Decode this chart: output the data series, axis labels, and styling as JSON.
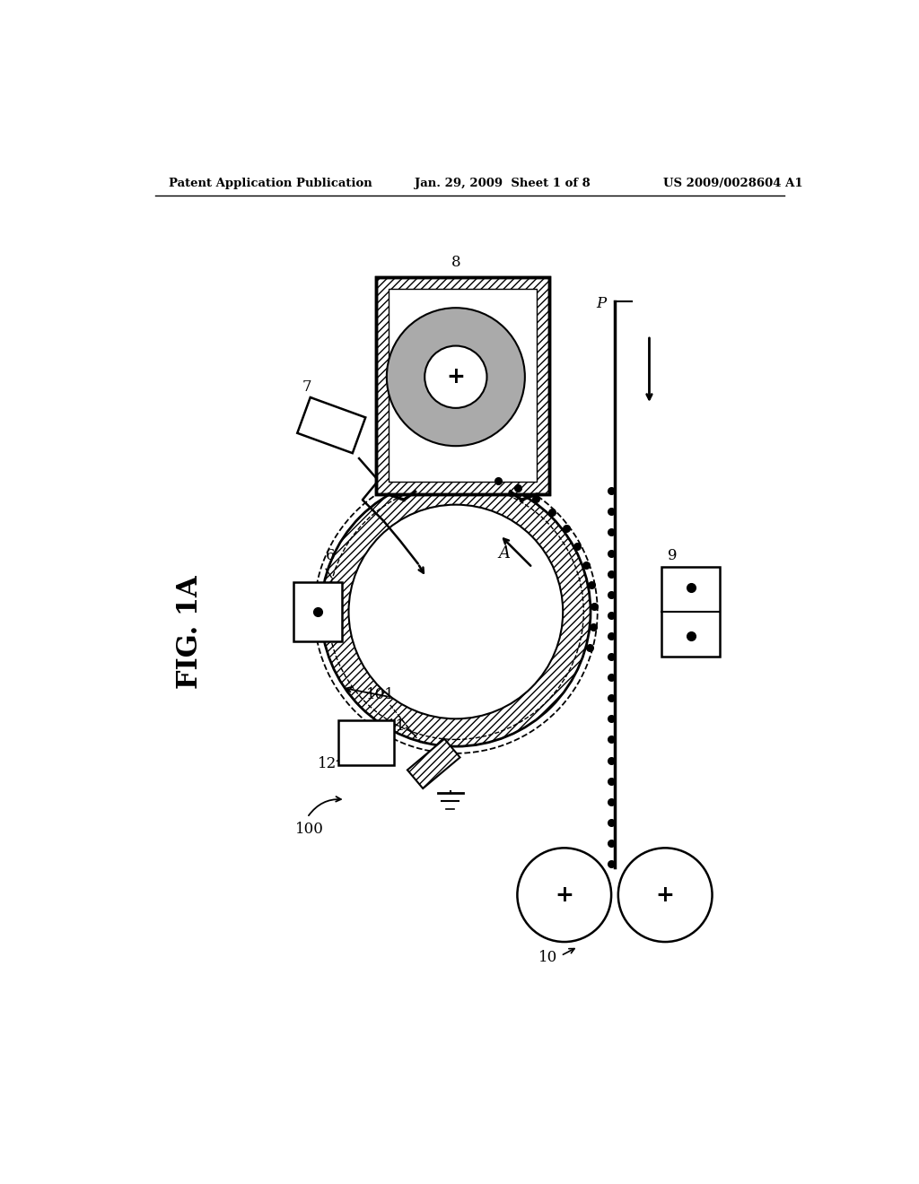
{
  "background_color": "#ffffff",
  "header_left": "Patent Application Publication",
  "header_center": "Jan. 29, 2009  Sheet 1 of 8",
  "header_right": "US 2009/0028604 A1",
  "fig_label": "FIG. 1A"
}
